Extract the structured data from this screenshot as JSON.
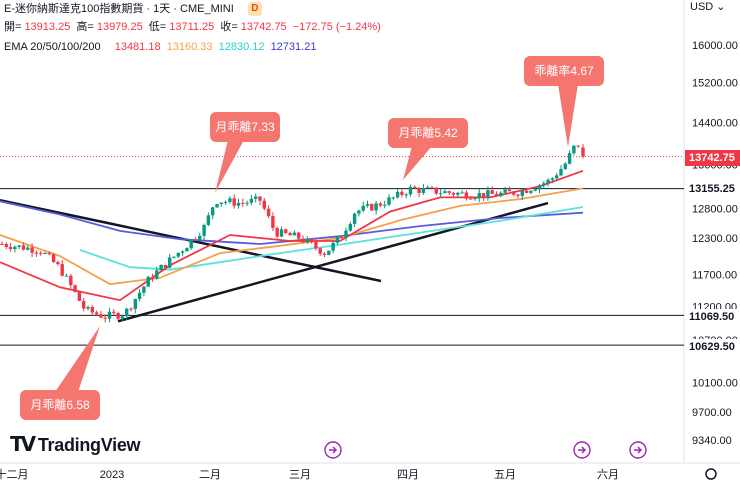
{
  "header": {
    "title": "E-迷你納斯達克100指數期貨 · 1天 · CME_MINI",
    "badge": "D",
    "open_label": "開=",
    "open": "13913.25",
    "high_label": "高=",
    "high": "13979.25",
    "low_label": "低=",
    "low": "13711.25",
    "close_label": "收=",
    "close": "13742.75",
    "change": "−172.75 (−1.24%)",
    "ema_label": "EMA 20/50/100/200",
    "ema20": "13481.18",
    "ema50": "13160.33",
    "ema100": "12830.12",
    "ema200": "12731.21"
  },
  "currency": "USD",
  "logo": "TradingView",
  "colors": {
    "up": "#089981",
    "down": "#f23645",
    "ema20": "#f23645",
    "ema50": "#f5a04b",
    "ema100": "#5ee0e0",
    "ema200": "#5b5be0",
    "callout": "#f4766f",
    "event": "#9c27b0"
  },
  "price_tags": {
    "last": "13742.75",
    "level1": "13155.25",
    "level2": "11069.50",
    "level3": "10629.50"
  },
  "callouts": [
    {
      "text": "月乖離7.33"
    },
    {
      "text": "月乖離5.42"
    },
    {
      "text": "乖離率4.67"
    },
    {
      "text": "月乖離6.58"
    }
  ],
  "chart_data": {
    "type": "candlestick",
    "title": "E-迷你納斯達克100指數期貨 · 1天 · CME_MINI",
    "y_axis": {
      "scale": "log",
      "ticks": [
        "16000.00",
        "15200.00",
        "14400.00",
        "13600.00",
        "12800.00",
        "12300.00",
        "11700.00",
        "11200.00",
        "10700.00",
        "10100.00",
        "9700.00",
        "9340.00"
      ],
      "ylim": [
        9200,
        17000
      ]
    },
    "x_axis": {
      "ticks": [
        "十二月",
        "2023",
        "二月",
        "三月",
        "四月",
        "五月",
        "六月"
      ]
    },
    "horizontal_levels": [
      13155.25,
      11069.5,
      10629.5
    ],
    "series": [
      {
        "name": "EMA 20",
        "last": 13481.18
      },
      {
        "name": "EMA 50",
        "last": 13160.33
      },
      {
        "name": "EMA 100",
        "last": 12830.12
      },
      {
        "name": "EMA 200",
        "last": 12731.21
      }
    ],
    "last_bar": {
      "open": 13913.25,
      "high": 13979.25,
      "low": 13711.25,
      "close": 13742.75
    },
    "annotations": [
      "月乖離7.33",
      "月乖離5.42",
      "乖離率4.67",
      "月乖離6.58"
    ]
  }
}
